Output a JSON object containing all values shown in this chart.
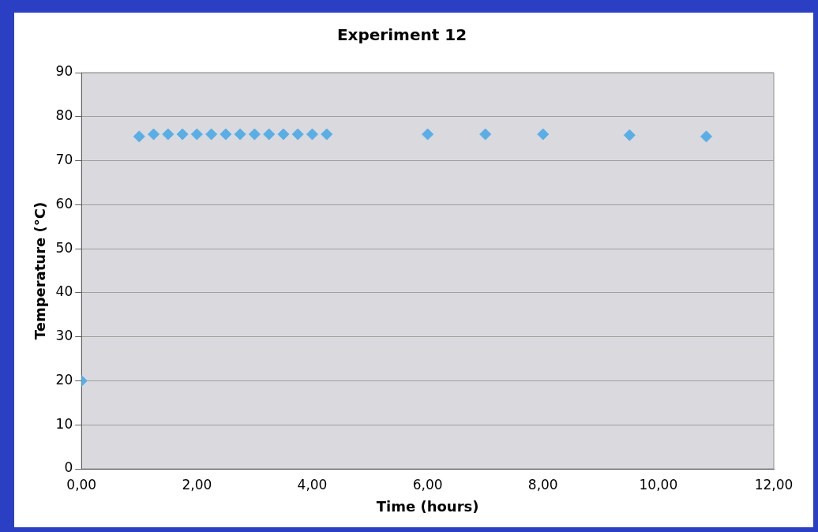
{
  "chart_data": {
    "type": "scatter",
    "title": "Experiment 12",
    "xlabel": "Time (hours)",
    "ylabel": "Temperature (°C)",
    "x": [
      0,
      1,
      1.25,
      1.5,
      1.75,
      2,
      2.25,
      2.5,
      2.75,
      3,
      3.25,
      3.5,
      3.75,
      4,
      4.25,
      6,
      7,
      8,
      9.5,
      10.83
    ],
    "series": [
      {
        "color": "#5aaee6",
        "values": [
          20,
          75.5,
          76,
          76,
          76,
          76,
          76,
          76,
          76,
          76,
          76,
          76,
          76,
          76,
          76,
          76,
          76,
          76,
          75.8,
          75.5
        ]
      }
    ],
    "xlim": [
      0,
      12
    ],
    "xticks": [
      {
        "value": 0,
        "label": "0,00"
      },
      {
        "value": 2,
        "label": "2,00"
      },
      {
        "value": 4,
        "label": "4,00"
      },
      {
        "value": 6,
        "label": "6,00"
      },
      {
        "value": 8,
        "label": "8,00"
      },
      {
        "value": 10,
        "label": "10,00"
      },
      {
        "value": 12,
        "label": "12,00"
      }
    ],
    "ylim": [
      0,
      90
    ],
    "yticks": [
      0,
      10,
      20,
      30,
      40,
      50,
      60,
      70,
      80,
      90
    ],
    "grid": "y",
    "legend": false,
    "marker": "diamond"
  }
}
